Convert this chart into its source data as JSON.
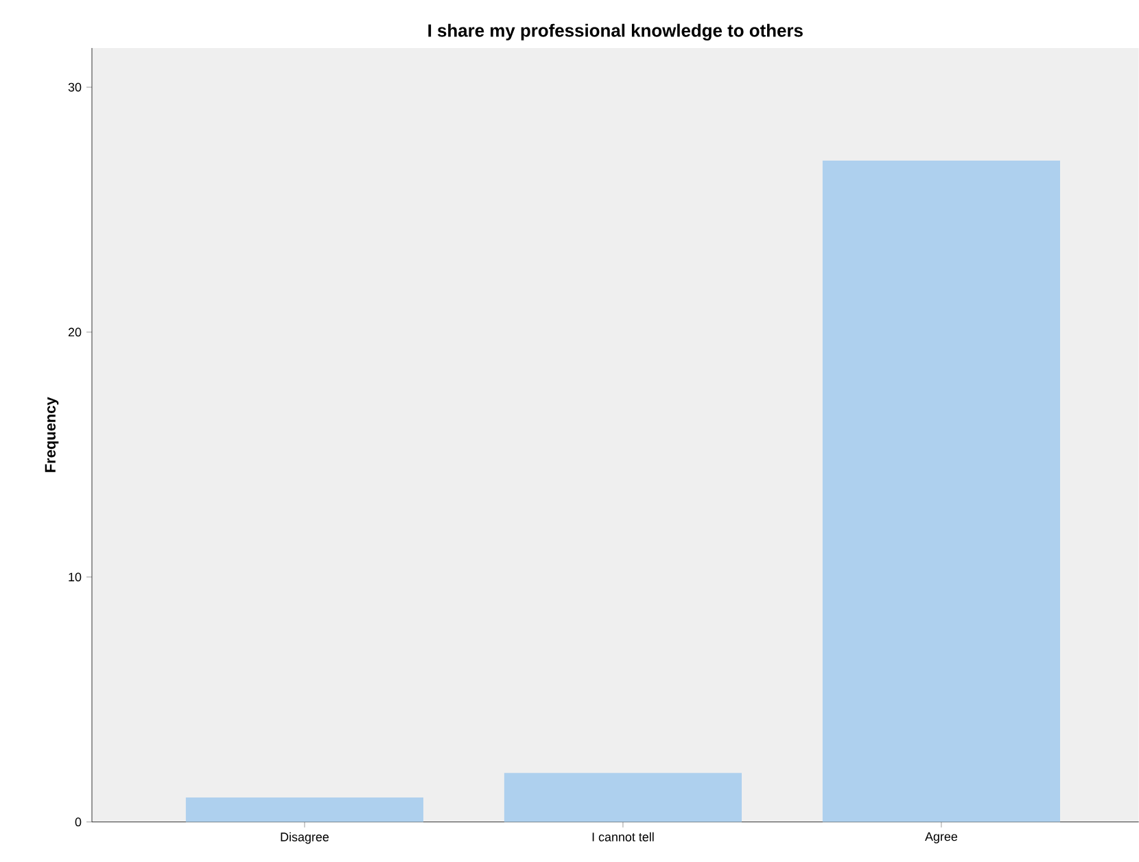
{
  "chart_data": {
    "type": "bar",
    "title": "I share my professional knowledge to others",
    "ylabel": "Frequency",
    "categories": [
      "Disagree",
      "I cannot tell",
      "Agree"
    ],
    "values": [
      1,
      2,
      27
    ],
    "color": "#aed0ee",
    "ylim": [
      0,
      31.6
    ],
    "yticks": [
      0,
      10,
      20,
      30
    ]
  }
}
